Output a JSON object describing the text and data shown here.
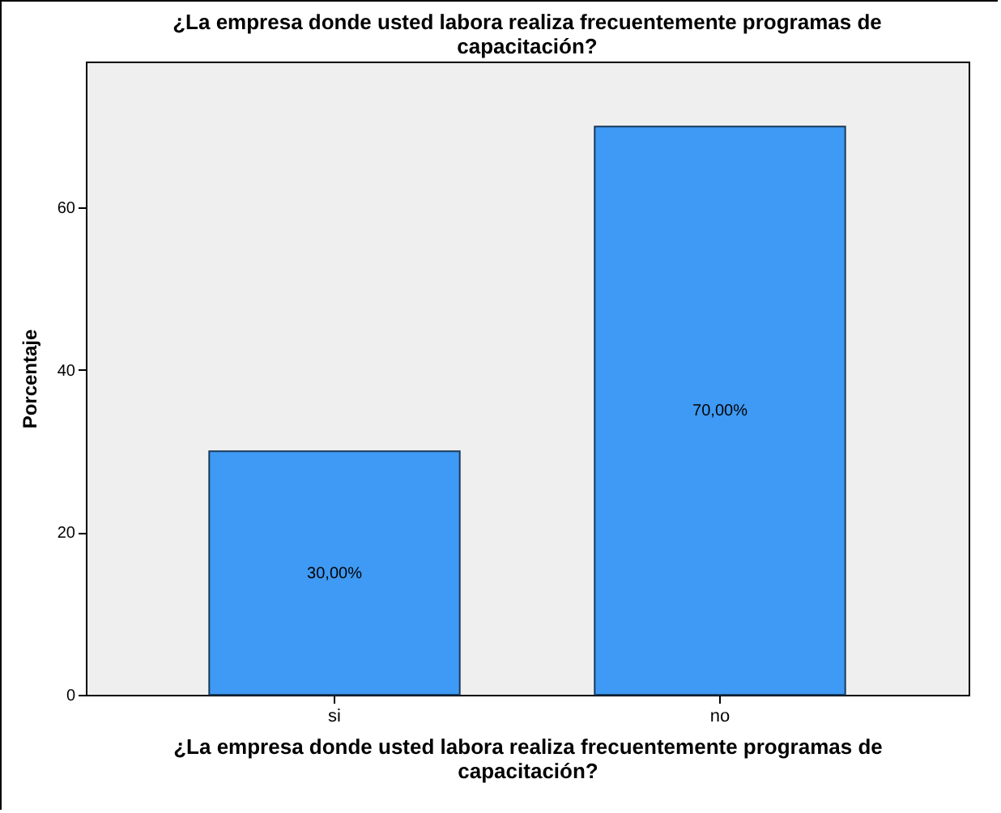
{
  "chart_data": {
    "type": "bar",
    "title": "¿La empresa donde usted labora realiza frecuentemente programas de capacitación?",
    "xlabel": "¿La empresa donde usted labora realiza frecuentemente programas de capacitación?",
    "ylabel": "Porcentaje",
    "categories": [
      "si",
      "no"
    ],
    "values": [
      30,
      70
    ],
    "value_labels": [
      "30,00%",
      "70,00%"
    ],
    "color": "#3e9af4",
    "ylim": [
      0,
      78
    ],
    "yticks": [
      0,
      20,
      40,
      60
    ],
    "grid": false
  }
}
